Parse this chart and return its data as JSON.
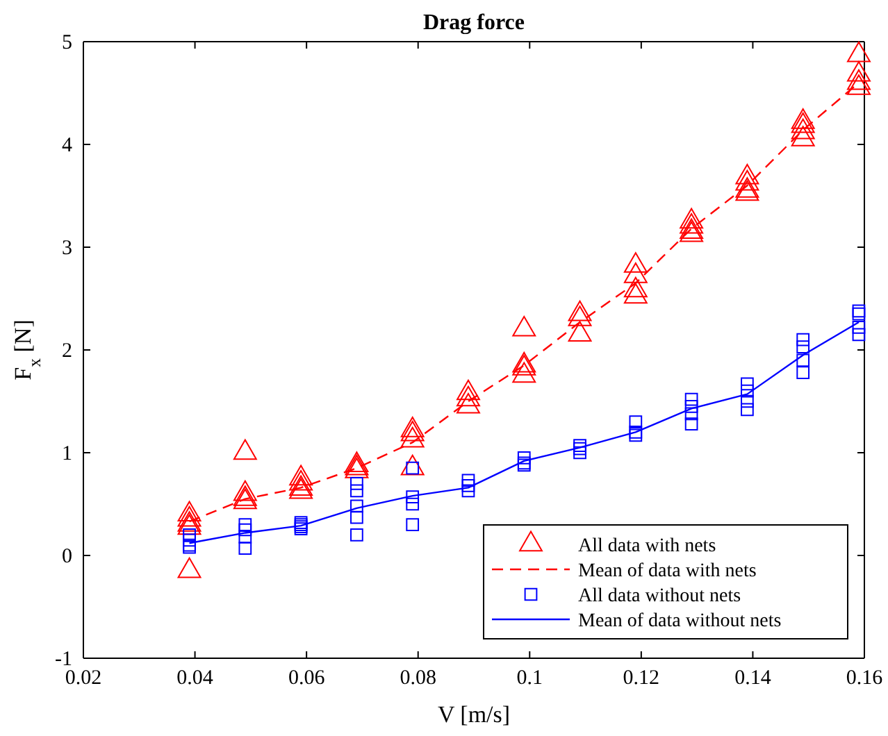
{
  "chart_data": {
    "type": "scatter",
    "title": "Drag force",
    "xlabel": "V [m/s]",
    "ylabel": "F$_{x}$ [N]",
    "xlim": [
      0.02,
      0.16
    ],
    "xticks": [
      0.02,
      0.04,
      0.06,
      0.08,
      0.1,
      0.12,
      0.14,
      0.16
    ],
    "ylim": [
      -1,
      5
    ],
    "yticks": [
      -1,
      0,
      1,
      2,
      3,
      4,
      5
    ],
    "grid": false,
    "legend": "bottom right",
    "series": [
      {
        "name": "All data with nets",
        "type": "scatter",
        "marker": "triangle",
        "color": "#ff0000",
        "x": [
          0.039,
          0.039,
          0.039,
          0.039,
          0.039,
          0.049,
          0.049,
          0.049,
          0.049,
          0.059,
          0.059,
          0.059,
          0.059,
          0.069,
          0.069,
          0.069,
          0.079,
          0.079,
          0.079,
          0.079,
          0.089,
          0.089,
          0.089,
          0.099,
          0.099,
          0.099,
          0.099,
          0.109,
          0.109,
          0.109,
          0.119,
          0.119,
          0.119,
          0.119,
          0.129,
          0.129,
          0.129,
          0.129,
          0.139,
          0.139,
          0.139,
          0.139,
          0.149,
          0.149,
          0.149,
          0.149,
          0.159,
          0.159,
          0.159,
          0.159
        ],
        "values": [
          0.4,
          0.35,
          0.3,
          0.27,
          -0.15,
          1.0,
          0.6,
          0.55,
          0.52,
          0.75,
          0.7,
          0.65,
          0.62,
          0.88,
          0.85,
          0.82,
          1.22,
          1.18,
          1.12,
          0.85,
          1.58,
          1.52,
          1.45,
          2.2,
          1.85,
          1.82,
          1.75,
          2.35,
          2.3,
          2.15,
          2.82,
          2.72,
          2.58,
          2.52,
          3.25,
          3.2,
          3.15,
          3.12,
          3.68,
          3.62,
          3.55,
          3.52,
          4.22,
          4.18,
          4.12,
          4.05,
          4.87,
          4.68,
          4.6,
          4.55
        ]
      },
      {
        "name": "Mean of data with nets",
        "type": "line",
        "marker": "none",
        "line_style": "dashed",
        "color": "#ff0000",
        "x": [
          0.039,
          0.049,
          0.059,
          0.069,
          0.079,
          0.089,
          0.099,
          0.109,
          0.119,
          0.129,
          0.139,
          0.149,
          0.159
        ],
        "values": [
          0.33,
          0.55,
          0.66,
          0.85,
          1.1,
          1.5,
          1.85,
          2.27,
          2.65,
          3.18,
          3.6,
          4.14,
          4.6
        ]
      },
      {
        "name": "All data without nets",
        "type": "scatter",
        "marker": "square",
        "color": "#0000ff",
        "x": [
          0.039,
          0.039,
          0.039,
          0.039,
          0.049,
          0.049,
          0.049,
          0.049,
          0.059,
          0.059,
          0.059,
          0.059,
          0.069,
          0.069,
          0.069,
          0.069,
          0.069,
          0.079,
          0.079,
          0.079,
          0.079,
          0.089,
          0.089,
          0.089,
          0.099,
          0.099,
          0.099,
          0.109,
          0.109,
          0.109,
          0.119,
          0.119,
          0.119,
          0.129,
          0.129,
          0.129,
          0.129,
          0.139,
          0.139,
          0.139,
          0.139,
          0.149,
          0.149,
          0.149,
          0.149,
          0.159,
          0.159,
          0.159,
          0.159
        ],
        "values": [
          0.2,
          0.15,
          0.1,
          0.08,
          0.3,
          0.25,
          0.18,
          0.07,
          0.32,
          0.3,
          0.28,
          0.26,
          0.7,
          0.63,
          0.48,
          0.37,
          0.2,
          0.85,
          0.57,
          0.5,
          0.3,
          0.73,
          0.68,
          0.63,
          0.95,
          0.9,
          0.88,
          1.07,
          1.04,
          1.0,
          1.3,
          1.2,
          1.17,
          1.52,
          1.45,
          1.38,
          1.28,
          1.67,
          1.6,
          1.5,
          1.42,
          2.1,
          2.03,
          1.9,
          1.78,
          2.38,
          2.35,
          2.22,
          2.15
        ]
      },
      {
        "name": "Mean of data without nets",
        "type": "line",
        "marker": "none",
        "line_style": "solid",
        "color": "#0000ff",
        "x": [
          0.039,
          0.049,
          0.059,
          0.069,
          0.079,
          0.089,
          0.099,
          0.109,
          0.119,
          0.129,
          0.139,
          0.149,
          0.159
        ],
        "values": [
          0.12,
          0.22,
          0.29,
          0.46,
          0.58,
          0.66,
          0.92,
          1.05,
          1.2,
          1.43,
          1.57,
          1.95,
          2.27
        ]
      }
    ]
  }
}
